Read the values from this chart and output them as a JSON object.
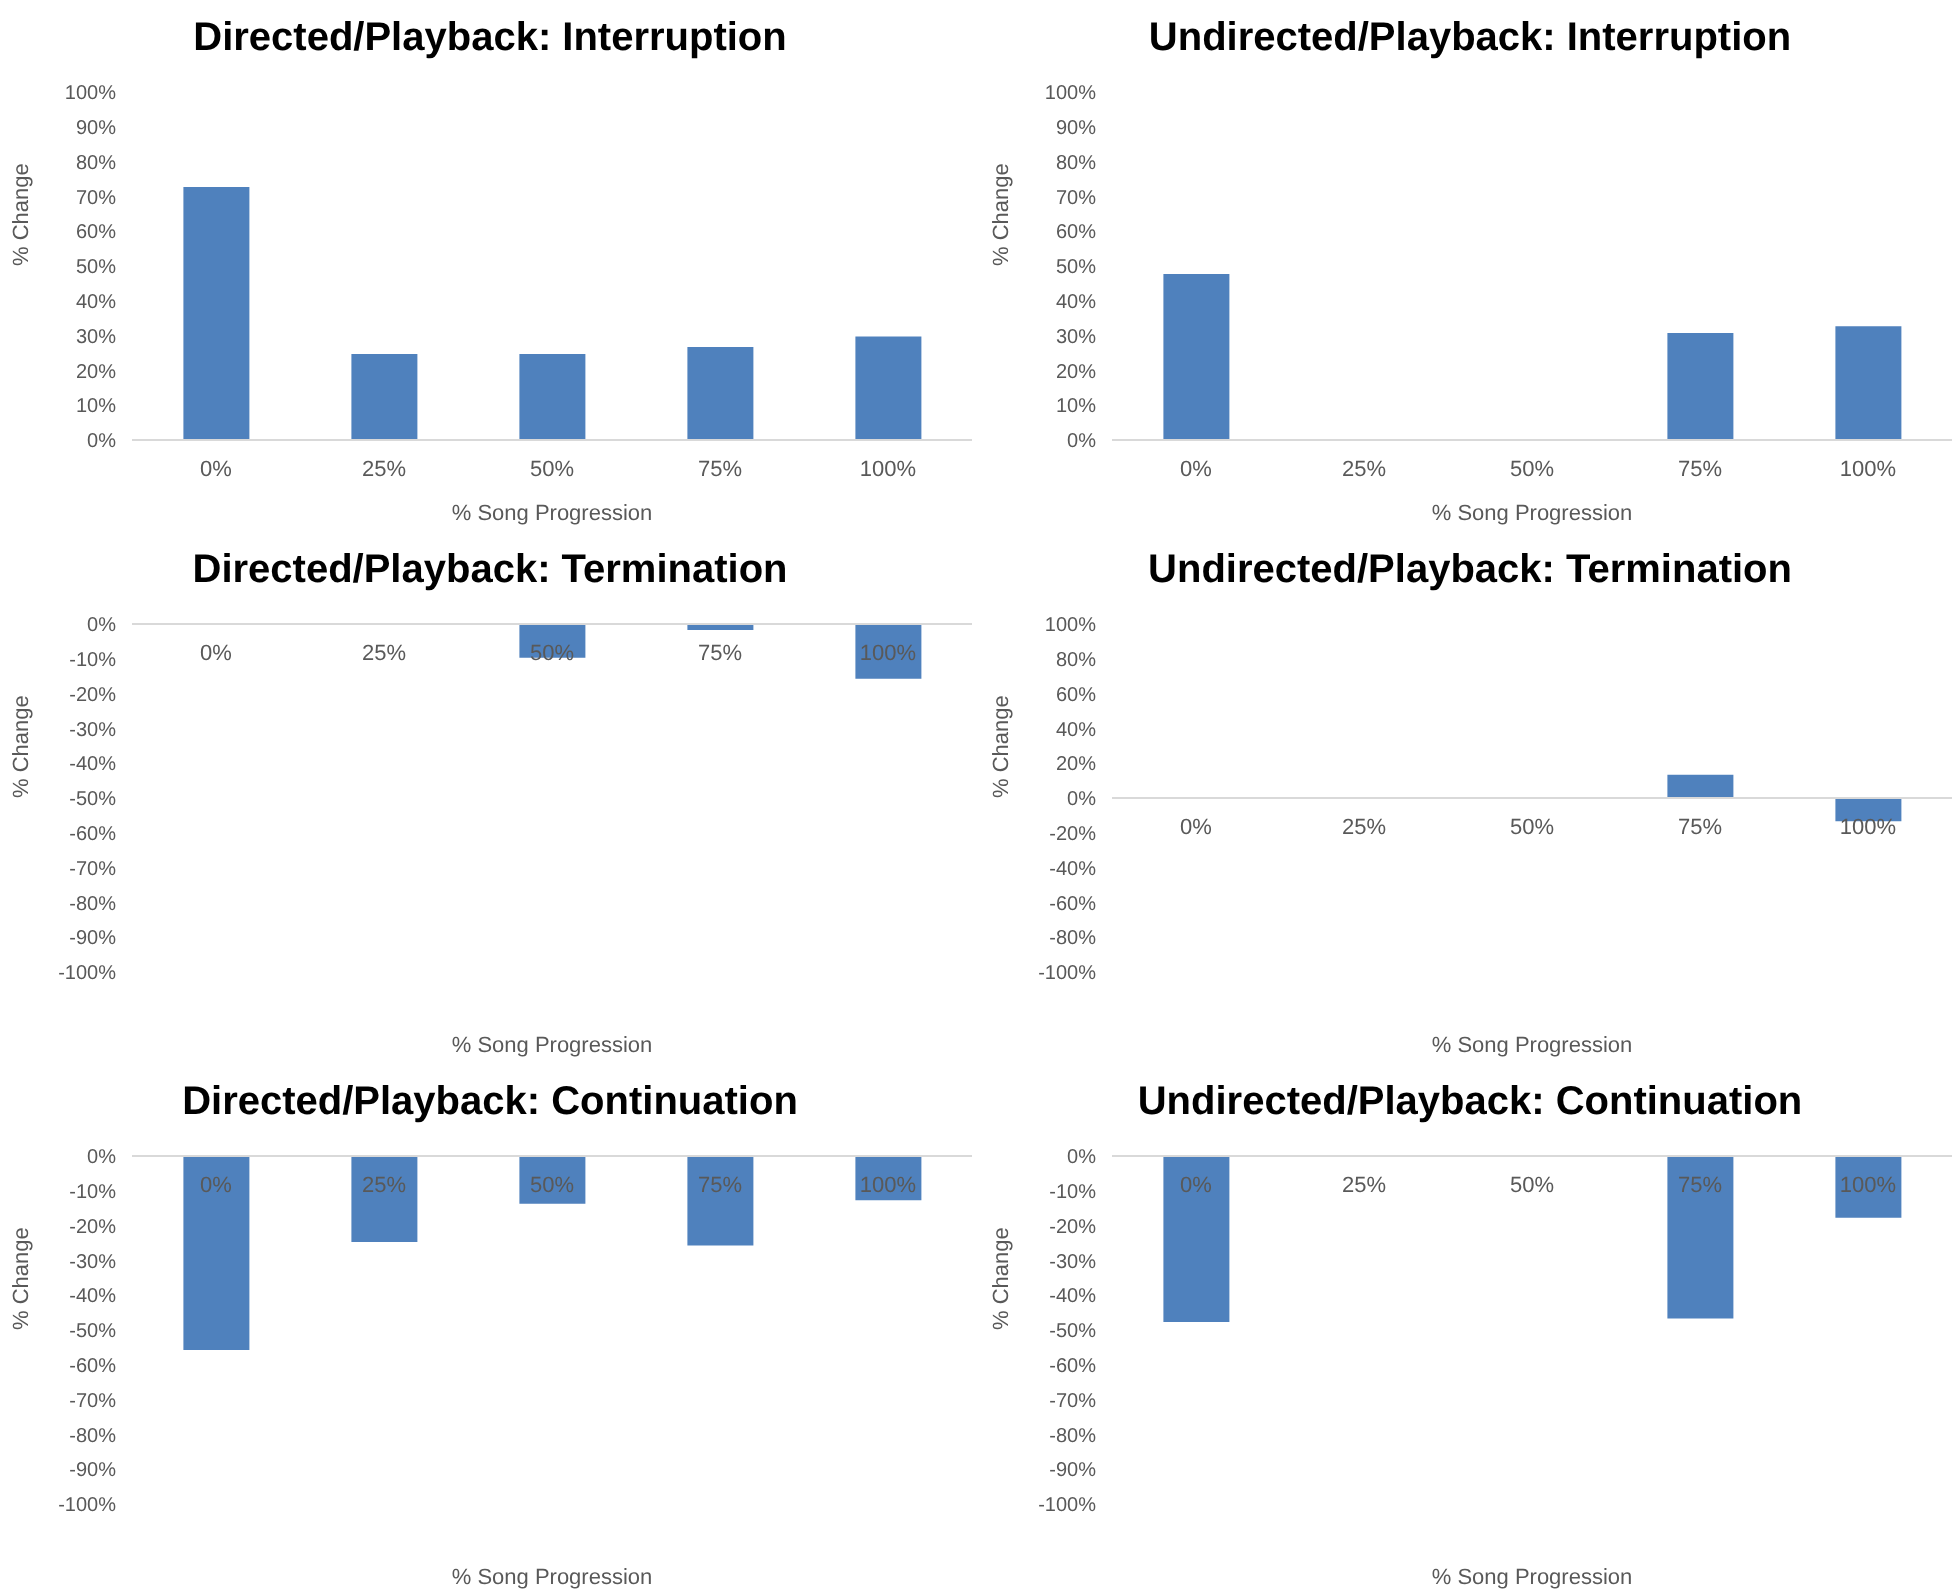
{
  "chart_data": [
    {
      "type": "bar",
      "title": "Directed/Playback: Interruption",
      "xlabel": "% Song Progression",
      "ylabel": "% Change",
      "categories": [
        "0%",
        "25%",
        "50%",
        "75%",
        "100%"
      ],
      "values": [
        73,
        25,
        25,
        27,
        30
      ],
      "color": "#4f81bd",
      "ylim": [
        0,
        100
      ],
      "yticks": [
        {
          "value": 0,
          "label": "0%"
        },
        {
          "value": 10,
          "label": "10%"
        },
        {
          "value": 20,
          "label": "20%"
        },
        {
          "value": 30,
          "label": "30%"
        },
        {
          "value": 40,
          "label": "40%"
        },
        {
          "value": 50,
          "label": "50%"
        },
        {
          "value": 60,
          "label": "60%"
        },
        {
          "value": 70,
          "label": "70%"
        },
        {
          "value": 80,
          "label": "80%"
        },
        {
          "value": 90,
          "label": "90%"
        },
        {
          "value": 100,
          "label": "100%"
        }
      ]
    },
    {
      "type": "bar",
      "title": "Undirected/Playback: Interruption",
      "xlabel": "% Song Progression",
      "ylabel": "% Change",
      "categories": [
        "0%",
        "25%",
        "50%",
        "75%",
        "100%"
      ],
      "values": [
        48,
        0,
        0,
        31,
        33
      ],
      "color": "#4f81bd",
      "ylim": [
        0,
        100
      ],
      "yticks": [
        {
          "value": 0,
          "label": "0%"
        },
        {
          "value": 10,
          "label": "10%"
        },
        {
          "value": 20,
          "label": "20%"
        },
        {
          "value": 30,
          "label": "30%"
        },
        {
          "value": 40,
          "label": "40%"
        },
        {
          "value": 50,
          "label": "50%"
        },
        {
          "value": 60,
          "label": "60%"
        },
        {
          "value": 70,
          "label": "70%"
        },
        {
          "value": 80,
          "label": "80%"
        },
        {
          "value": 90,
          "label": "90%"
        },
        {
          "value": 100,
          "label": "100%"
        }
      ]
    },
    {
      "type": "bar",
      "title": "Directed/Playback: Termination",
      "xlabel": "% Song Progression",
      "ylabel": "% Change",
      "categories": [
        "0%",
        "25%",
        "50%",
        "75%",
        "100%"
      ],
      "values": [
        0,
        0,
        -10,
        -2,
        -16
      ],
      "color": "#4f81bd",
      "ylim": [
        -100,
        0
      ],
      "yticks": [
        {
          "value": -100,
          "label": "-100%"
        },
        {
          "value": -90,
          "label": "-90%"
        },
        {
          "value": -80,
          "label": "-80%"
        },
        {
          "value": -70,
          "label": "-70%"
        },
        {
          "value": -60,
          "label": "-60%"
        },
        {
          "value": -50,
          "label": "-50%"
        },
        {
          "value": -40,
          "label": "-40%"
        },
        {
          "value": -30,
          "label": "-30%"
        },
        {
          "value": -20,
          "label": "-20%"
        },
        {
          "value": -10,
          "label": "-10%"
        },
        {
          "value": 0,
          "label": "0%"
        }
      ]
    },
    {
      "type": "bar",
      "title": "Undirected/Playback: Termination",
      "xlabel": "% Song Progression",
      "ylabel": "% Change",
      "categories": [
        "0%",
        "25%",
        "50%",
        "75%",
        "100%"
      ],
      "values": [
        0,
        0,
        0,
        14,
        -14
      ],
      "color": "#4f81bd",
      "ylim": [
        -100,
        100
      ],
      "yticks": [
        {
          "value": -100,
          "label": "-100%"
        },
        {
          "value": -80,
          "label": "-80%"
        },
        {
          "value": -60,
          "label": "-60%"
        },
        {
          "value": -40,
          "label": "-40%"
        },
        {
          "value": -20,
          "label": "-20%"
        },
        {
          "value": 0,
          "label": "0%"
        },
        {
          "value": 20,
          "label": "20%"
        },
        {
          "value": 40,
          "label": "40%"
        },
        {
          "value": 60,
          "label": "60%"
        },
        {
          "value": 80,
          "label": "80%"
        },
        {
          "value": 100,
          "label": "100%"
        }
      ]
    },
    {
      "type": "bar",
      "title": "Directed/Playback: Continuation",
      "xlabel": "% Song Progression",
      "ylabel": "% Change",
      "categories": [
        "0%",
        "25%",
        "50%",
        "75%",
        "100%"
      ],
      "values": [
        -56,
        -25,
        -14,
        -26,
        -13
      ],
      "color": "#4f81bd",
      "ylim": [
        -100,
        0
      ],
      "yticks": [
        {
          "value": -100,
          "label": "-100%"
        },
        {
          "value": -90,
          "label": "-90%"
        },
        {
          "value": -80,
          "label": "-80%"
        },
        {
          "value": -70,
          "label": "-70%"
        },
        {
          "value": -60,
          "label": "-60%"
        },
        {
          "value": -50,
          "label": "-50%"
        },
        {
          "value": -40,
          "label": "-40%"
        },
        {
          "value": -30,
          "label": "-30%"
        },
        {
          "value": -20,
          "label": "-20%"
        },
        {
          "value": -10,
          "label": "-10%"
        },
        {
          "value": 0,
          "label": "0%"
        }
      ]
    },
    {
      "type": "bar",
      "title": "Undirected/Playback: Continuation",
      "xlabel": "% Song Progression",
      "ylabel": "% Change",
      "categories": [
        "0%",
        "25%",
        "50%",
        "75%",
        "100%"
      ],
      "values": [
        -48,
        0,
        0,
        -47,
        -18
      ],
      "color": "#4f81bd",
      "ylim": [
        -100,
        0
      ],
      "yticks": [
        {
          "value": -100,
          "label": "-100%"
        },
        {
          "value": -90,
          "label": "-90%"
        },
        {
          "value": -80,
          "label": "-80%"
        },
        {
          "value": -70,
          "label": "-70%"
        },
        {
          "value": -60,
          "label": "-60%"
        },
        {
          "value": -50,
          "label": "-50%"
        },
        {
          "value": -40,
          "label": "-40%"
        },
        {
          "value": -30,
          "label": "-30%"
        },
        {
          "value": -20,
          "label": "-20%"
        },
        {
          "value": -10,
          "label": "-10%"
        },
        {
          "value": 0,
          "label": "0%"
        }
      ]
    }
  ]
}
